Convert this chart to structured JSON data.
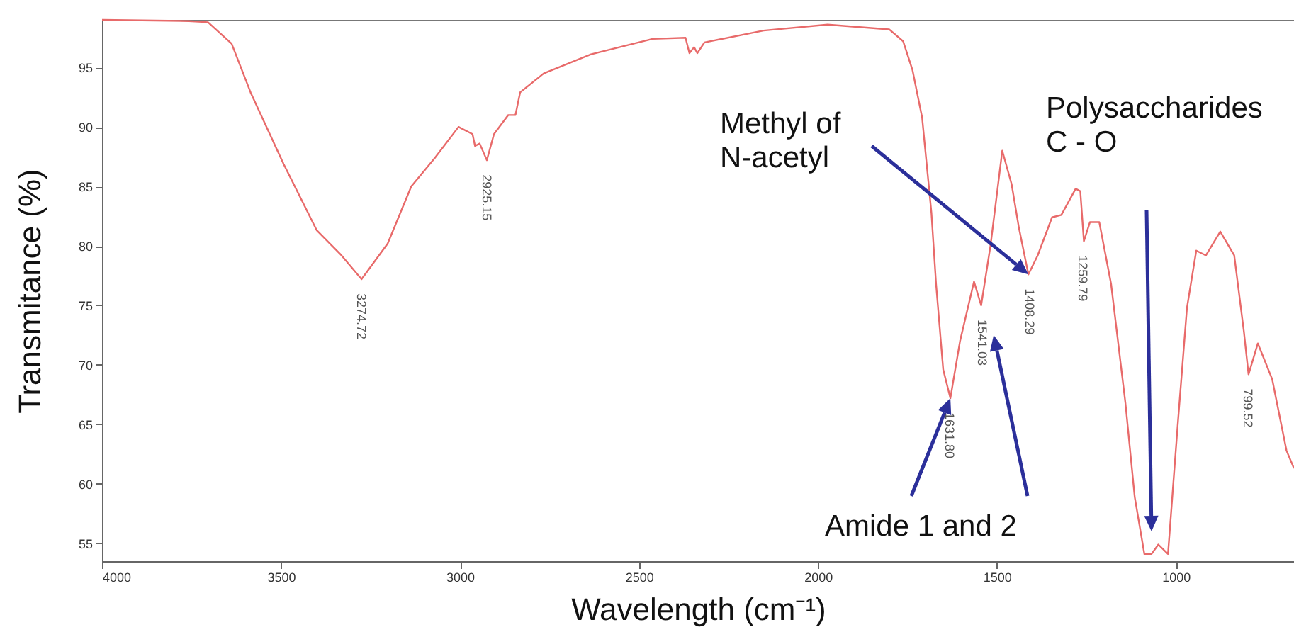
{
  "chart_data": {
    "type": "line",
    "xlabel": "Wavelength (cm⁻¹)",
    "ylabel": "Transmitance (%)",
    "xlim": [
      4000,
      670
    ],
    "ylim": [
      53.5,
      99
    ],
    "xticks": [
      4000,
      3500,
      3000,
      2500,
      2000,
      1500,
      1000
    ],
    "yticks": [
      55,
      60,
      65,
      70,
      75,
      80,
      85,
      90,
      95
    ],
    "grid": false,
    "marker": "none",
    "line_style": "solid",
    "series": [
      {
        "color": "#e86a6a",
        "x": [
          4000,
          3757,
          3704,
          3638,
          3585,
          3493,
          3400,
          3334,
          3275,
          3202,
          3136,
          3070,
          3004,
          2965,
          2958,
          2945,
          2925,
          2905,
          2865,
          2845,
          2832,
          2766,
          2634,
          2462,
          2370,
          2359,
          2346,
          2337,
          2317,
          2152,
          1973,
          1801,
          1762,
          1736,
          1709,
          1683,
          1670,
          1650,
          1630,
          1603,
          1564,
          1544,
          1518,
          1485,
          1459,
          1439,
          1412,
          1386,
          1346,
          1320,
          1280,
          1267,
          1257,
          1240,
          1214,
          1181,
          1141,
          1115,
          1088,
          1068,
          1049,
          1022,
          995,
          969,
          943,
          916,
          876,
          837,
          810,
          797,
          771,
          731,
          691,
          670
        ],
        "values": [
          99.0,
          98.9,
          98.8,
          97.0,
          92.9,
          86.9,
          81.3,
          79.3,
          77.2,
          80.2,
          85.0,
          87.4,
          90.0,
          89.4,
          88.4,
          88.6,
          87.2,
          89.4,
          91.0,
          91.0,
          92.9,
          94.5,
          96.1,
          97.4,
          97.5,
          96.2,
          96.7,
          96.2,
          97.1,
          98.1,
          98.6,
          98.2,
          97.2,
          94.8,
          90.8,
          82.8,
          76.8,
          69.6,
          67.2,
          72.0,
          77.0,
          75.0,
          80.0,
          88.0,
          85.2,
          81.6,
          77.6,
          79.2,
          82.4,
          82.6,
          84.8,
          84.6,
          80.4,
          82.0,
          82.0,
          76.8,
          66.8,
          58.9,
          54.1,
          54.1,
          54.9,
          54.1,
          64.9,
          74.8,
          79.6,
          79.2,
          81.2,
          79.2,
          72.8,
          69.2,
          71.8,
          68.8,
          62.8,
          61.3
        ]
      }
    ],
    "annotations": [
      {
        "text": "3274.72",
        "x": 3274.72,
        "y": 77.2
      },
      {
        "text": "2925.15",
        "x": 2925.15,
        "y": 87.2
      },
      {
        "text": "1631.80",
        "x": 1631.8,
        "y": 67.2
      },
      {
        "text": "1541.03",
        "x": 1541.03,
        "y": 75.0
      },
      {
        "text": "1408.29",
        "x": 1408.29,
        "y": 77.6
      },
      {
        "text": "1259.79",
        "x": 1259.79,
        "y": 80.4
      },
      {
        "text": "799.52",
        "x": 799.52,
        "y": 69.2
      },
      "Methyl of N-acetyl",
      "Polysaccharides C - O",
      "Amide 1 and 2"
    ]
  }
}
